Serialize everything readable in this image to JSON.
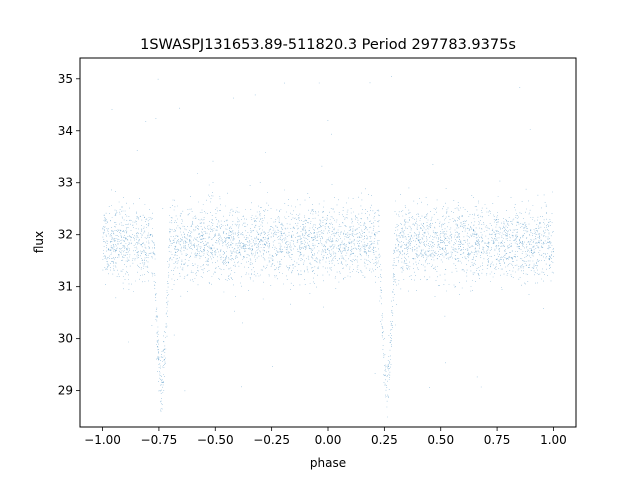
{
  "chart_data": {
    "type": "scatter",
    "title": "1SWASPJ131653.89-511820.3 Period 297783.9375s",
    "xlabel": "phase",
    "ylabel": "flux",
    "xlim": [
      -1.1,
      1.1
    ],
    "ylim": [
      28.3,
      35.4
    ],
    "x_ticks": [
      -1.0,
      -0.75,
      -0.5,
      -0.25,
      0.0,
      0.25,
      0.5,
      0.75,
      1.0
    ],
    "x_tick_labels": [
      "−1.00",
      "−0.75",
      "−0.50",
      "−0.25",
      "0.00",
      "0.25",
      "0.50",
      "0.75",
      "1.00"
    ],
    "y_ticks": [
      29,
      30,
      31,
      32,
      33,
      34,
      35
    ],
    "y_tick_labels": [
      "29",
      "30",
      "31",
      "32",
      "33",
      "34",
      "35"
    ],
    "grid": false,
    "legend": "none",
    "marker_color": "#1f77b4",
    "series": [
      {
        "model": "folded eclipsing light curve, phase-folded twice over [-1, 1]",
        "baseline_flux": 31.85,
        "baseline_scatter": 0.35,
        "eclipses": [
          {
            "center_phase": -0.74,
            "min_flux": 29.1,
            "half_width": 0.035
          },
          {
            "center_phase": 0.26,
            "min_flux": 29.1,
            "half_width": 0.035
          }
        ],
        "outlier_range": [
          28.6,
          35.1
        ],
        "x": [
          -1.0,
          -0.9,
          -0.8,
          -0.76,
          -0.74,
          -0.72,
          -0.68,
          -0.6,
          -0.5,
          -0.4,
          -0.3,
          -0.25,
          -0.2,
          -0.1,
          0.0,
          0.1,
          0.2,
          0.24,
          0.26,
          0.28,
          0.32,
          0.4,
          0.5,
          0.6,
          0.7,
          0.8,
          0.9,
          1.0
        ],
        "y": [
          31.85,
          31.85,
          31.8,
          30.2,
          29.3,
          30.2,
          31.75,
          31.85,
          31.85,
          31.85,
          31.8,
          31.6,
          31.8,
          31.9,
          31.9,
          31.9,
          31.8,
          30.2,
          29.3,
          30.2,
          31.75,
          31.85,
          31.85,
          31.85,
          31.8,
          31.85,
          31.85,
          31.85
        ]
      }
    ]
  }
}
